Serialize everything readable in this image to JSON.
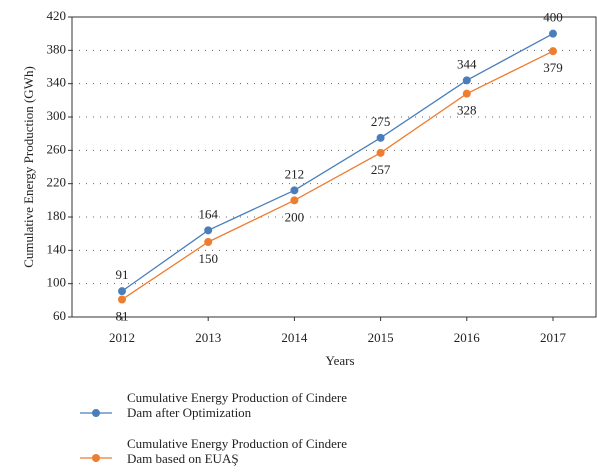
{
  "chart_data": {
    "type": "line",
    "x_label": "Years",
    "y_label": "Cumulative Energy Production (GWh)",
    "categories": [
      "2012",
      "2013",
      "2014",
      "2015",
      "2016",
      "2017"
    ],
    "series": [
      {
        "name": "Cumulative Energy Production of Cindere Dam after Optimization",
        "color": "#4a7ebb",
        "values": [
          91,
          164,
          212,
          275,
          344,
          400
        ]
      },
      {
        "name": "Cumulative Energy Production of Cindere Dam based on EUAŞ",
        "color": "#ed7d31",
        "values": [
          81,
          150,
          200,
          257,
          328,
          379
        ]
      }
    ],
    "ylim": [
      60,
      420
    ],
    "yticks": [
      60,
      100,
      140,
      180,
      220,
      260,
      300,
      340,
      380,
      420
    ],
    "grid": true
  }
}
